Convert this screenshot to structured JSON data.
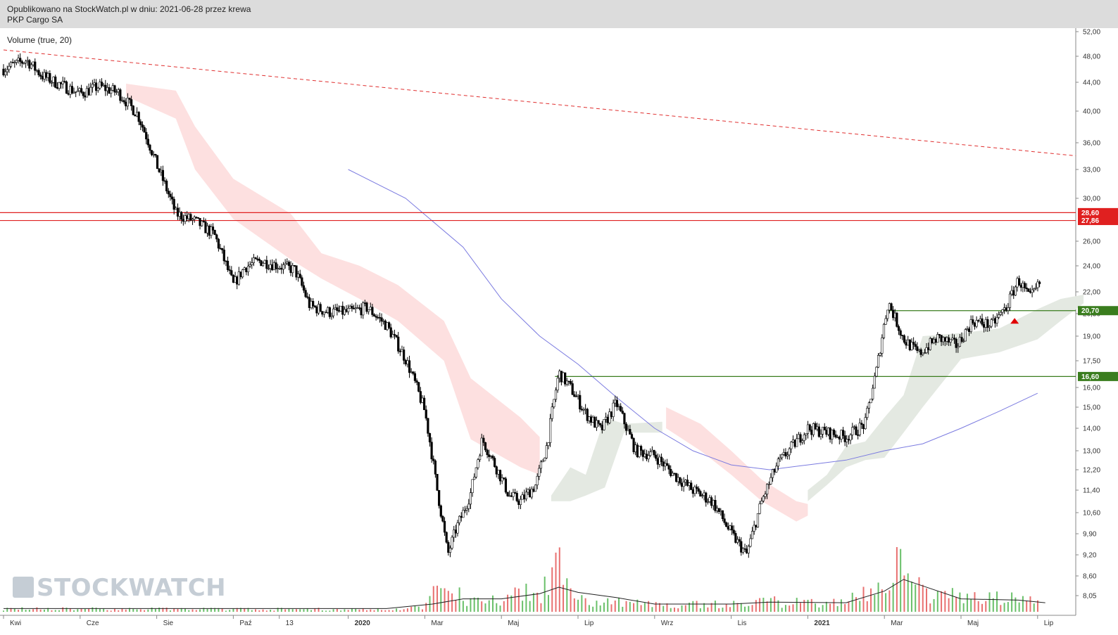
{
  "header": {
    "published": "Opublikowano na StockWatch.pl w dniu: 2021-06-28 przez krewa",
    "instrument": "PKP Cargo SA"
  },
  "indicator_label": "Volume (true, 20)",
  "watermark": "STOCKWATCH",
  "chart_data": {
    "type": "candlestick",
    "title": "PKP Cargo SA",
    "y_scale": "log",
    "ylim": [
      8.0,
      52.5
    ],
    "y_ticks": [
      "52,00",
      "48,00",
      "44,00",
      "40,00",
      "36,00",
      "33,00",
      "30,00",
      "26,00",
      "24,00",
      "22,00",
      "20,50",
      "19,00",
      "17,50",
      "16,00",
      "15,00",
      "14,00",
      "13,00",
      "12,20",
      "11,40",
      "10,60",
      "9,90",
      "9,20",
      "8,60",
      "8,05"
    ],
    "x_ticks": [
      "Kwi",
      "Cze",
      "Sie",
      "Paź",
      "13",
      "2020",
      "Mar",
      "Maj",
      "Lip",
      "Wrz",
      "Lis",
      "2021",
      "Mar",
      "Maj",
      "Lip"
    ],
    "x_tick_positions": [
      0,
      2,
      4,
      6,
      7.2,
      9,
      11,
      13,
      15,
      17,
      19,
      21,
      23,
      25,
      27
    ],
    "horizontal_levels": [
      {
        "value": 28.6,
        "label": "28,60",
        "color": "#e02020"
      },
      {
        "value": 27.86,
        "label": "27,86",
        "color": "#e02020"
      },
      {
        "value": 20.7,
        "label": "20,70",
        "color": "#3a7d1e"
      },
      {
        "value": 16.6,
        "label": "16,60",
        "color": "#3a7d1e"
      }
    ],
    "price_path": [
      [
        0,
        46.0
      ],
      [
        0.3,
        46.7
      ],
      [
        0.6,
        47.4
      ],
      [
        1.0,
        45.0
      ],
      [
        1.5,
        43.6
      ],
      [
        2.0,
        42.4
      ],
      [
        2.5,
        43.4
      ],
      [
        3.0,
        42.5
      ],
      [
        3.5,
        39.6
      ],
      [
        4.0,
        33.5
      ],
      [
        4.5,
        28.5
      ],
      [
        5.0,
        27.8
      ],
      [
        5.5,
        26.6
      ],
      [
        6.0,
        22.5
      ],
      [
        6.3,
        23.9
      ],
      [
        6.7,
        24.4
      ],
      [
        7.2,
        24.0
      ],
      [
        7.6,
        23.7
      ],
      [
        8.0,
        21.0
      ],
      [
        8.5,
        20.6
      ],
      [
        9.0,
        20.6
      ],
      [
        9.5,
        20.9
      ],
      [
        10.0,
        19.7
      ],
      [
        10.5,
        17.6
      ],
      [
        11.0,
        14.8
      ],
      [
        11.3,
        11.6
      ],
      [
        11.6,
        9.2
      ],
      [
        11.8,
        10.0
      ],
      [
        12.0,
        10.6
      ],
      [
        12.2,
        11.3
      ],
      [
        12.5,
        13.5
      ],
      [
        12.8,
        12.5
      ],
      [
        13.2,
        11.2
      ],
      [
        13.5,
        11.0
      ],
      [
        13.9,
        11.6
      ],
      [
        14.2,
        13.3
      ],
      [
        14.5,
        16.8
      ],
      [
        14.8,
        16.0
      ],
      [
        15.2,
        14.7
      ],
      [
        15.6,
        13.9
      ],
      [
        16.0,
        15.2
      ],
      [
        16.5,
        13.0
      ],
      [
        17.0,
        12.8
      ],
      [
        17.5,
        12.0
      ],
      [
        18.0,
        11.4
      ],
      [
        18.5,
        11.0
      ],
      [
        19.0,
        9.9
      ],
      [
        19.4,
        9.2
      ],
      [
        19.8,
        11.0
      ],
      [
        20.2,
        12.4
      ],
      [
        20.6,
        13.2
      ],
      [
        21.0,
        14.0
      ],
      [
        21.5,
        13.8
      ],
      [
        22.0,
        13.6
      ],
      [
        22.5,
        14.2
      ],
      [
        22.8,
        17.0
      ],
      [
        23.1,
        21.3
      ],
      [
        23.5,
        18.8
      ],
      [
        23.9,
        17.9
      ],
      [
        24.4,
        18.9
      ],
      [
        24.9,
        18.4
      ],
      [
        25.3,
        20.0
      ],
      [
        25.8,
        19.7
      ],
      [
        26.2,
        21.0
      ],
      [
        26.5,
        22.9
      ],
      [
        26.8,
        21.5
      ],
      [
        27.1,
        22.8
      ]
    ],
    "volume_profile": [
      [
        0,
        0.06
      ],
      [
        10,
        0.05
      ],
      [
        11,
        0.1
      ],
      [
        11.5,
        0.7
      ],
      [
        12,
        0.25
      ],
      [
        13,
        0.3
      ],
      [
        14,
        0.4
      ],
      [
        14.5,
        0.9
      ],
      [
        15,
        0.25
      ],
      [
        17,
        0.15
      ],
      [
        19,
        0.15
      ],
      [
        20,
        0.2
      ],
      [
        22,
        0.2
      ],
      [
        23,
        0.6
      ],
      [
        23.3,
        0.95
      ],
      [
        24,
        0.4
      ],
      [
        25,
        0.3
      ],
      [
        26.5,
        0.25
      ],
      [
        27.2,
        0.15
      ]
    ],
    "volume_ma": [
      [
        0,
        0.05
      ],
      [
        10,
        0.05
      ],
      [
        11.2,
        0.12
      ],
      [
        12,
        0.2
      ],
      [
        13,
        0.2
      ],
      [
        14,
        0.28
      ],
      [
        14.5,
        0.38
      ],
      [
        15,
        0.3
      ],
      [
        16,
        0.22
      ],
      [
        17,
        0.12
      ],
      [
        19,
        0.12
      ],
      [
        20,
        0.15
      ],
      [
        22,
        0.14
      ],
      [
        23,
        0.32
      ],
      [
        23.5,
        0.5
      ],
      [
        24,
        0.4
      ],
      [
        25,
        0.2
      ],
      [
        26.5,
        0.18
      ],
      [
        27.2,
        0.14
      ]
    ],
    "sma": [
      [
        9,
        33.0
      ],
      [
        10.5,
        30.0
      ],
      [
        12,
        25.5
      ],
      [
        13,
        21.5
      ],
      [
        14,
        19.0
      ],
      [
        15,
        17.3
      ],
      [
        16,
        15.5
      ],
      [
        17,
        14.0
      ],
      [
        18,
        13.0
      ],
      [
        19,
        12.4
      ],
      [
        20,
        12.2
      ],
      [
        21,
        12.4
      ],
      [
        22,
        12.6
      ],
      [
        23,
        13.0
      ],
      [
        24,
        13.3
      ],
      [
        25,
        14.0
      ],
      [
        26,
        14.8
      ],
      [
        27,
        15.7
      ]
    ],
    "trendline": {
      "style": "dashed",
      "color": "#e03030",
      "from": [
        0,
        49.0
      ],
      "to": [
        28.0,
        34.5
      ]
    },
    "cloud_bearish": [
      [
        3.2,
        43.8,
        42.0
      ],
      [
        4.5,
        42.8,
        39.0
      ],
      [
        5.0,
        38.0,
        33.0
      ],
      [
        6.0,
        32.0,
        28.0
      ],
      [
        7.5,
        28.5,
        24.5
      ],
      [
        8.3,
        25.0,
        23.0
      ],
      [
        9.3,
        24.0,
        21.5
      ],
      [
        10.3,
        22.5,
        20.0
      ],
      [
        11.5,
        20.0,
        17.5
      ],
      [
        12.2,
        16.5,
        13.5
      ],
      [
        13.5,
        14.5,
        12.3
      ],
      [
        14.0,
        13.6,
        12.0
      ],
      [
        17.3,
        15.0,
        14.0
      ],
      [
        18.2,
        14.2,
        13.0
      ],
      [
        19.0,
        13.0,
        12.0
      ],
      [
        19.8,
        11.8,
        11.0
      ],
      [
        20.7,
        11.0,
        10.3
      ],
      [
        21.0,
        10.9,
        10.5
      ],
      [
        26.2,
        19.3,
        18.6
      ],
      [
        26.6,
        19.9,
        19.0
      ]
    ],
    "cloud_bullish": [
      [
        14.3,
        11.2,
        11.0
      ],
      [
        14.8,
        12.3,
        11.0
      ],
      [
        15.2,
        12.0,
        11.2
      ],
      [
        15.7,
        14.5,
        11.5
      ],
      [
        16.2,
        14.2,
        13.8
      ],
      [
        17.2,
        14.3,
        13.8
      ],
      [
        21.0,
        11.4,
        11.0
      ],
      [
        21.5,
        12.0,
        11.6
      ],
      [
        22.0,
        13.2,
        12.3
      ],
      [
        22.5,
        13.4,
        12.6
      ],
      [
        23.0,
        14.5,
        12.7
      ],
      [
        23.5,
        15.6,
        13.8
      ],
      [
        24.0,
        19.0,
        15.0
      ],
      [
        25.0,
        19.2,
        17.6
      ],
      [
        26.0,
        19.5,
        18.0
      ],
      [
        27.0,
        20.8,
        18.8
      ],
      [
        27.6,
        21.5,
        20.0
      ],
      [
        28.2,
        21.8,
        21.2
      ]
    ],
    "markers": [
      {
        "type": "triangle-up",
        "x": 26.4,
        "y": 20.1,
        "color": "#e00000"
      }
    ]
  }
}
